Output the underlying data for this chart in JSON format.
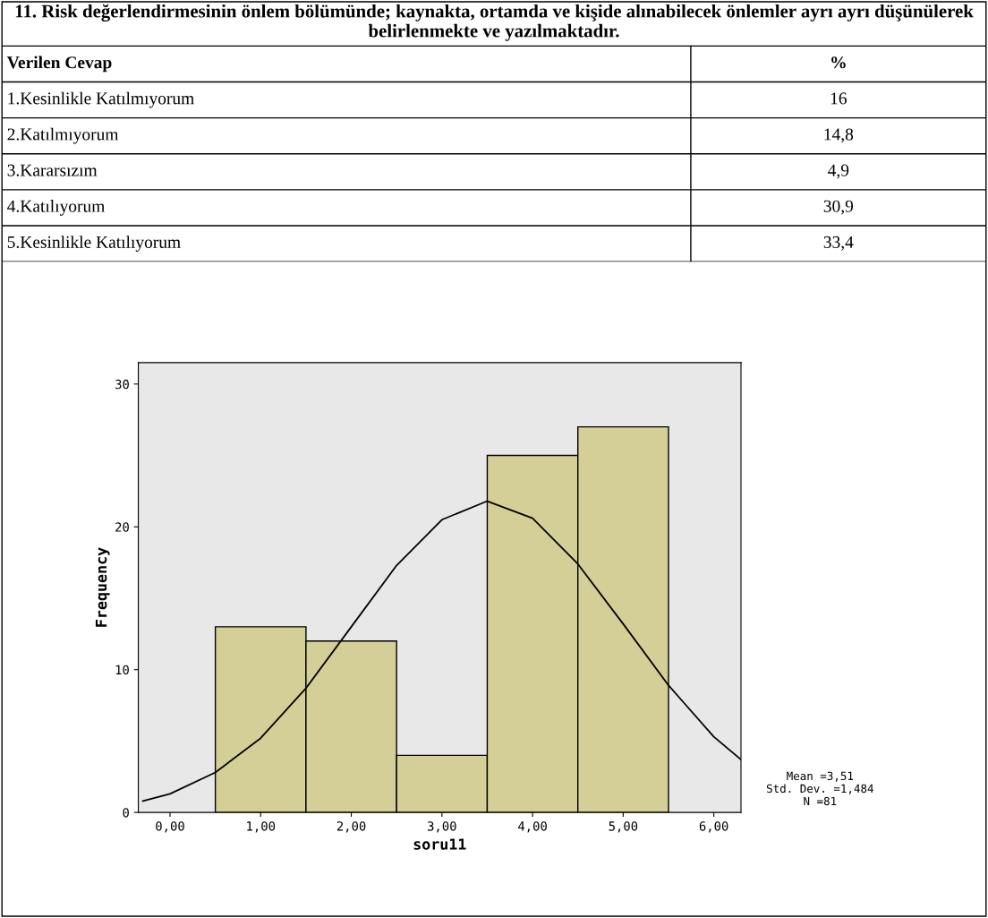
{
  "chart_data": [
    {
      "type": "other",
      "title": "11. Risk değerlendirmesinin önlem bölümünde; kaynakta, ortamda ve kişide alınabilecek önlemler ayrı ayrı düşünülerek belirlenmekte ve yazılmaktadır.",
      "annotations": [
        "Verilen Cevap",
        "%",
        "1.Kesinlikle Katılmıyorum",
        "16",
        "2.Katılmıyorum",
        "14,8",
        "3.Kararsızım",
        "4,9",
        "4.Katılıyorum",
        "30,9",
        "5.Kesinlikle Katılıyorum",
        "33,4"
      ]
    },
    {
      "type": "histogram",
      "xlabel": "soru11",
      "ylabel": "Frequency",
      "bins": [
        0.5,
        1.5,
        2.5,
        3.5,
        4.5,
        5.5
      ],
      "values": [
        13,
        12,
        4,
        25,
        27
      ],
      "color": "#d4cf96",
      "series": [
        {
          "type": "line",
          "color": "#000000",
          "x": [
            -0.3,
            0,
            0.5,
            1,
            1.5,
            2,
            2.5,
            3,
            3.5,
            4,
            4.5,
            5,
            5.5,
            6,
            6.3
          ],
          "values": [
            0.8,
            1.3,
            2.8,
            5.2,
            8.7,
            13.0,
            17.3,
            20.5,
            21.8,
            20.6,
            17.4,
            13.2,
            8.9,
            5.3,
            3.7
          ]
        }
      ],
      "xlim": [
        -0.35,
        6.3
      ],
      "ylim": [
        0,
        31.5
      ],
      "xticks": [
        {
          "value": 0,
          "label": "0,00"
        },
        {
          "value": 1,
          "label": "1,00"
        },
        {
          "value": 2,
          "label": "2,00"
        },
        {
          "value": 3,
          "label": "3,00"
        },
        {
          "value": 4,
          "label": "4,00"
        },
        {
          "value": 5,
          "label": "5,00"
        },
        {
          "value": 6,
          "label": "6,00"
        }
      ],
      "yticks": [
        0,
        10,
        20,
        30
      ],
      "annotations": [
        "Mean =3,51\nStd. Dev. =1,484\nN =81"
      ]
    }
  ]
}
